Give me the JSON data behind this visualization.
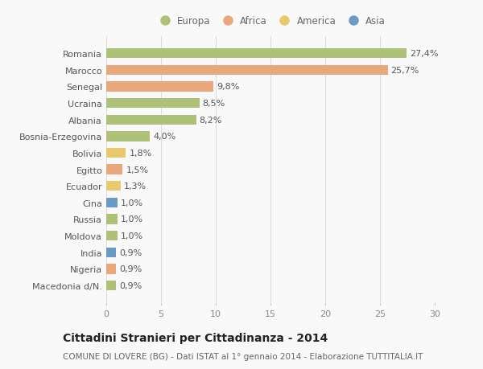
{
  "categories": [
    "Macedonia d/N.",
    "Nigeria",
    "India",
    "Moldova",
    "Russia",
    "Cina",
    "Ecuador",
    "Egitto",
    "Bolivia",
    "Bosnia-Erzegovina",
    "Albania",
    "Ucraina",
    "Senegal",
    "Marocco",
    "Romania"
  ],
  "values": [
    0.9,
    0.9,
    0.9,
    1.0,
    1.0,
    1.0,
    1.3,
    1.5,
    1.8,
    4.0,
    8.2,
    8.5,
    9.8,
    25.7,
    27.4
  ],
  "labels": [
    "0,9%",
    "0,9%",
    "0,9%",
    "1,0%",
    "1,0%",
    "1,0%",
    "1,3%",
    "1,5%",
    "1,8%",
    "4,0%",
    "8,2%",
    "8,5%",
    "9,8%",
    "25,7%",
    "27,4%"
  ],
  "continents": [
    "Europa",
    "Africa",
    "Asia",
    "Europa",
    "Europa",
    "Asia",
    "America",
    "Africa",
    "America",
    "Europa",
    "Europa",
    "Europa",
    "Africa",
    "Africa",
    "Europa"
  ],
  "continent_colors": {
    "Europa": "#adc178",
    "Africa": "#e9a87c",
    "America": "#e8c96e",
    "Asia": "#6b9bc4"
  },
  "legend_order": [
    "Europa",
    "Africa",
    "America",
    "Asia"
  ],
  "xlim": [
    0,
    30
  ],
  "xticks": [
    0,
    5,
    10,
    15,
    20,
    25,
    30
  ],
  "title": "Cittadini Stranieri per Cittadinanza - 2014",
  "subtitle": "COMUNE DI LOVERE (BG) - Dati ISTAT al 1° gennaio 2014 - Elaborazione TUTTITALIA.IT",
  "bg_color": "#f9f9f9",
  "grid_color": "#dddddd",
  "bar_height": 0.6,
  "label_fontsize": 8,
  "title_fontsize": 10,
  "subtitle_fontsize": 7.5
}
